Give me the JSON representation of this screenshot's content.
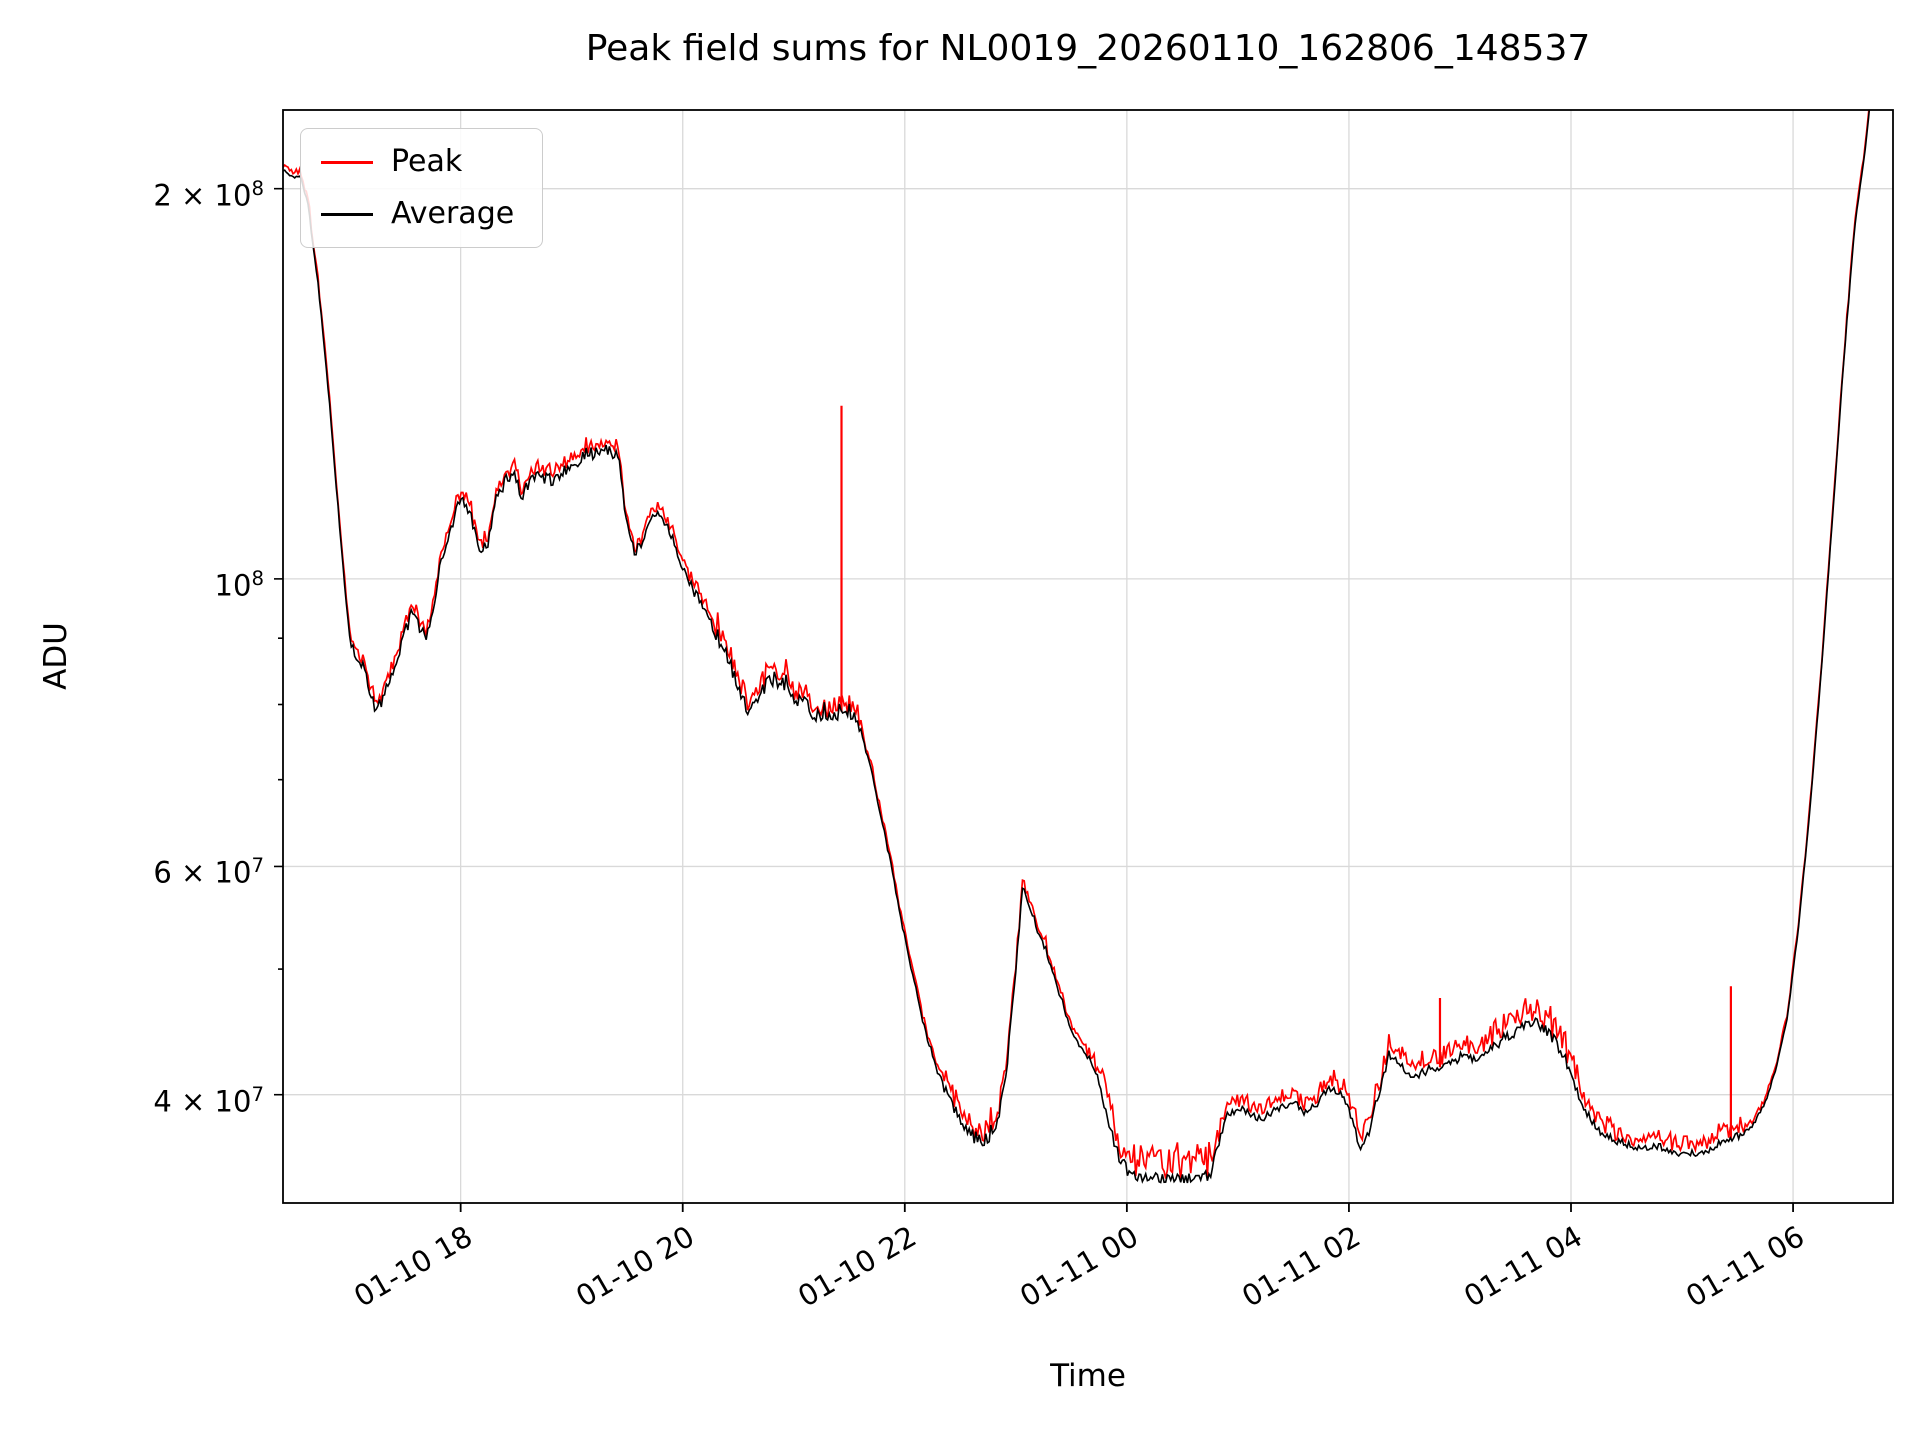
{
  "title": "Peak field sums for NL0019_20260110_162806_148537",
  "axes": {
    "xlabel": "Time",
    "ylabel": "ADU"
  },
  "legend": {
    "items": [
      {
        "label": "Peak",
        "color": "#ff0000"
      },
      {
        "label": "Average",
        "color": "#000000"
      }
    ]
  },
  "chart_data": {
    "type": "line",
    "title": "Peak field sums for NL0019_20260110_162806_148537",
    "xlabel": "Time",
    "ylabel": "ADU",
    "yscale": "log",
    "grid": true,
    "legend_loc": "upper left",
    "x_unit": "hours since 2026-01-10 00:00",
    "xlim_hours": [
      16.4,
      30.9
    ],
    "ylim": [
      33000000,
      230000000
    ],
    "xticks": [
      {
        "t": 18,
        "label": "01-10 18"
      },
      {
        "t": 20,
        "label": "01-10 20"
      },
      {
        "t": 22,
        "label": "01-10 22"
      },
      {
        "t": 24,
        "label": "01-11 00"
      },
      {
        "t": 26,
        "label": "01-11 02"
      },
      {
        "t": 28,
        "label": "01-11 04"
      },
      {
        "t": 30,
        "label": "01-11 06"
      }
    ],
    "yticks": [
      {
        "v": 40000000,
        "label": "4 × 10^7"
      },
      {
        "v": 60000000,
        "label": "6 × 10^7"
      },
      {
        "v": 100000000,
        "label": "10^8"
      },
      {
        "v": 200000000,
        "label": "2 × 10^8"
      }
    ],
    "y_minor_ticks": [
      40000000,
      50000000,
      60000000,
      70000000,
      80000000,
      90000000,
      100000000,
      200000000
    ],
    "series": [
      {
        "name": "Peak",
        "color": "#ff0000",
        "note": "tracks Average from above with noise envelope; distinct spikes listed",
        "spikes": [
          [
            21.43,
            136000000
          ],
          [
            26.82,
            47500000
          ],
          [
            29.44,
            48500000
          ]
        ]
      },
      {
        "name": "Average",
        "color": "#000000",
        "points": [
          [
            16.4,
            207000000
          ],
          [
            16.48,
            204000000
          ],
          [
            16.55,
            205000000
          ],
          [
            16.62,
            196000000
          ],
          [
            16.72,
            168000000
          ],
          [
            16.82,
            136000000
          ],
          [
            16.92,
            107000000
          ],
          [
            17.0,
            90000000
          ],
          [
            17.05,
            87000000
          ],
          [
            17.12,
            86000000
          ],
          [
            17.18,
            82000000
          ],
          [
            17.24,
            79000000
          ],
          [
            17.3,
            81000000
          ],
          [
            17.37,
            84000000
          ],
          [
            17.44,
            87000000
          ],
          [
            17.5,
            91000000
          ],
          [
            17.56,
            94000000
          ],
          [
            17.62,
            92000000
          ],
          [
            17.68,
            90000000
          ],
          [
            17.75,
            94000000
          ],
          [
            17.82,
            103000000
          ],
          [
            17.9,
            109000000
          ],
          [
            17.98,
            114000000
          ],
          [
            18.04,
            115000000
          ],
          [
            18.1,
            111000000
          ],
          [
            18.17,
            105000000
          ],
          [
            18.24,
            106000000
          ],
          [
            18.32,
            115000000
          ],
          [
            18.4,
            119000000
          ],
          [
            18.48,
            120000000
          ],
          [
            18.55,
            116000000
          ],
          [
            18.62,
            119000000
          ],
          [
            18.72,
            120000000
          ],
          [
            18.82,
            119000000
          ],
          [
            18.92,
            121000000
          ],
          [
            19.02,
            122000000
          ],
          [
            19.12,
            125000000
          ],
          [
            19.22,
            125000000
          ],
          [
            19.32,
            126000000
          ],
          [
            19.42,
            124000000
          ],
          [
            19.47,
            115000000
          ],
          [
            19.52,
            108000000
          ],
          [
            19.57,
            105000000
          ],
          [
            19.64,
            107000000
          ],
          [
            19.72,
            111000000
          ],
          [
            19.8,
            112000000
          ],
          [
            19.88,
            109000000
          ],
          [
            19.95,
            105000000
          ],
          [
            20.02,
            101000000
          ],
          [
            20.12,
            97000000
          ],
          [
            20.22,
            94000000
          ],
          [
            20.32,
            90000000
          ],
          [
            20.42,
            86000000
          ],
          [
            20.52,
            81000000
          ],
          [
            20.6,
            79000000
          ],
          [
            20.68,
            81000000
          ],
          [
            20.78,
            83000000
          ],
          [
            20.88,
            84000000
          ],
          [
            20.98,
            82000000
          ],
          [
            21.08,
            80000000
          ],
          [
            21.18,
            79000000
          ],
          [
            21.3,
            79000000
          ],
          [
            21.42,
            79000000
          ],
          [
            21.52,
            79000000
          ],
          [
            21.6,
            77000000
          ],
          [
            21.68,
            72000000
          ],
          [
            21.78,
            66000000
          ],
          [
            21.88,
            60000000
          ],
          [
            21.98,
            54000000
          ],
          [
            22.08,
            49000000
          ],
          [
            22.18,
            45000000
          ],
          [
            22.28,
            42000000
          ],
          [
            22.38,
            40000000
          ],
          [
            22.48,
            38500000
          ],
          [
            22.58,
            37300000
          ],
          [
            22.68,
            36800000
          ],
          [
            22.76,
            37200000
          ],
          [
            22.84,
            38500000
          ],
          [
            22.92,
            42000000
          ],
          [
            23.0,
            50000000
          ],
          [
            23.06,
            58000000
          ],
          [
            23.12,
            56000000
          ],
          [
            23.2,
            53500000
          ],
          [
            23.28,
            51500000
          ],
          [
            23.36,
            49000000
          ],
          [
            23.44,
            46500000
          ],
          [
            23.52,
            44500000
          ],
          [
            23.6,
            43500000
          ],
          [
            23.68,
            42500000
          ],
          [
            23.76,
            40500000
          ],
          [
            23.84,
            38000000
          ],
          [
            23.92,
            36000000
          ],
          [
            24.0,
            35000000
          ],
          [
            24.1,
            34600000
          ],
          [
            24.25,
            34500000
          ],
          [
            24.45,
            34500000
          ],
          [
            24.65,
            34500000
          ],
          [
            24.75,
            34700000
          ],
          [
            24.82,
            36500000
          ],
          [
            24.9,
            38500000
          ],
          [
            25.0,
            39000000
          ],
          [
            25.1,
            38800000
          ],
          [
            25.2,
            38300000
          ],
          [
            25.3,
            38800000
          ],
          [
            25.4,
            39200000
          ],
          [
            25.5,
            39500000
          ],
          [
            25.6,
            38800000
          ],
          [
            25.7,
            39300000
          ],
          [
            25.82,
            40500000
          ],
          [
            25.92,
            40200000
          ],
          [
            26.02,
            38500000
          ],
          [
            26.1,
            36500000
          ],
          [
            26.18,
            37500000
          ],
          [
            26.28,
            40500000
          ],
          [
            26.36,
            43000000
          ],
          [
            26.44,
            42500000
          ],
          [
            26.54,
            41500000
          ],
          [
            26.64,
            41500000
          ],
          [
            26.74,
            42000000
          ],
          [
            26.84,
            42000000
          ],
          [
            26.94,
            42500000
          ],
          [
            27.04,
            43000000
          ],
          [
            27.14,
            42500000
          ],
          [
            27.24,
            43000000
          ],
          [
            27.38,
            44000000
          ],
          [
            27.52,
            45000000
          ],
          [
            27.64,
            45500000
          ],
          [
            27.76,
            45000000
          ],
          [
            27.86,
            44000000
          ],
          [
            27.96,
            42500000
          ],
          [
            28.06,
            40000000
          ],
          [
            28.16,
            38500000
          ],
          [
            28.26,
            37500000
          ],
          [
            28.4,
            36800000
          ],
          [
            28.6,
            36500000
          ],
          [
            28.8,
            36500000
          ],
          [
            29.0,
            36000000
          ],
          [
            29.15,
            36000000
          ],
          [
            29.3,
            36500000
          ],
          [
            29.44,
            37000000
          ],
          [
            29.55,
            37300000
          ],
          [
            29.65,
            38000000
          ],
          [
            29.75,
            39500000
          ],
          [
            29.85,
            42000000
          ],
          [
            29.95,
            46000000
          ],
          [
            30.05,
            54000000
          ],
          [
            30.15,
            66000000
          ],
          [
            30.25,
            84000000
          ],
          [
            30.35,
            110000000
          ],
          [
            30.45,
            145000000
          ],
          [
            30.55,
            185000000
          ],
          [
            30.65,
            215000000
          ],
          [
            30.72,
            245000000
          ]
        ]
      }
    ],
    "noise_regions": [
      [
        16.4,
        17.0,
        0.004,
        0.012
      ],
      [
        17.0,
        19.45,
        0.011,
        0.018
      ],
      [
        19.45,
        20.3,
        0.01,
        0.016
      ],
      [
        20.3,
        21.6,
        0.017,
        0.028
      ],
      [
        21.6,
        22.35,
        0.006,
        0.012
      ],
      [
        22.35,
        22.95,
        0.013,
        0.028
      ],
      [
        22.95,
        23.7,
        0.007,
        0.014
      ],
      [
        23.7,
        24.78,
        0.01,
        0.055
      ],
      [
        24.78,
        25.95,
        0.007,
        0.028
      ],
      [
        25.95,
        27.3,
        0.009,
        0.033
      ],
      [
        27.3,
        28.1,
        0.011,
        0.042
      ],
      [
        28.1,
        29.55,
        0.007,
        0.028
      ],
      [
        29.55,
        30.9,
        0.003,
        0.008
      ]
    ],
    "colors": {
      "peak": "#ff0000",
      "average": "#000000",
      "grid": "#d9d9d9",
      "spine": "#000000"
    }
  }
}
